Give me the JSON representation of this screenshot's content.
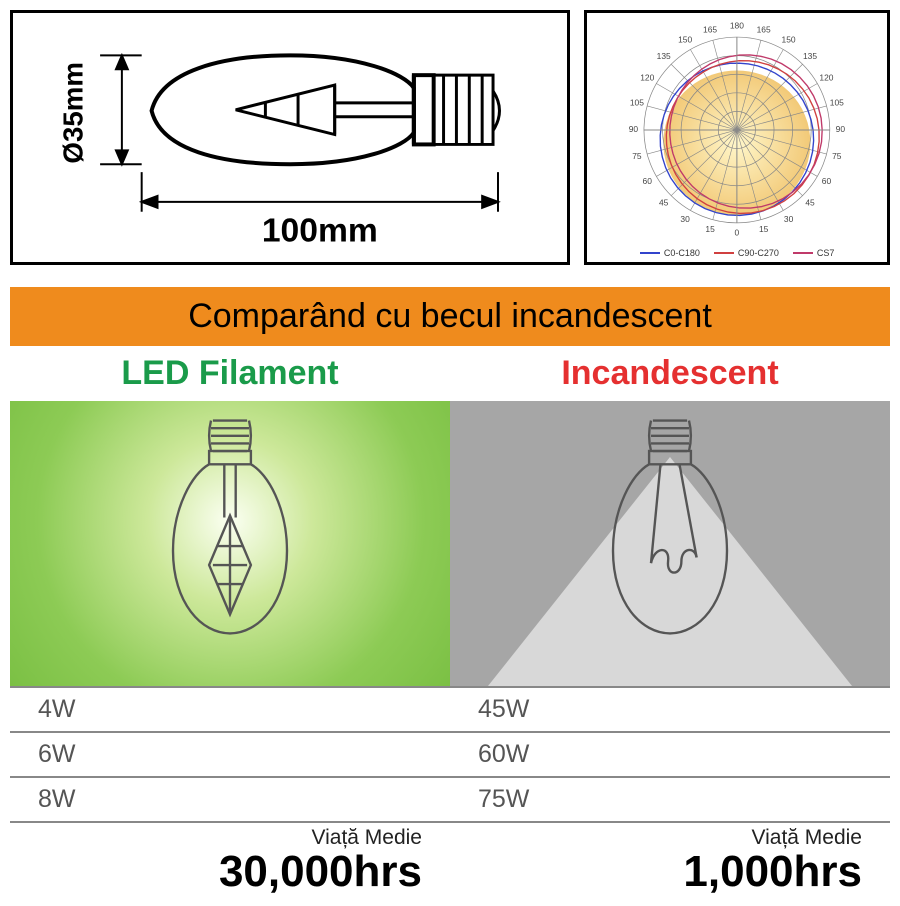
{
  "dimensions": {
    "width_label": "100mm",
    "height_label": "Ø35mm",
    "width_fontsize": 34,
    "height_fontsize": 28,
    "text_color": "#000000",
    "line_color": "#000000"
  },
  "polar": {
    "angle_labels": [
      "180",
      "165",
      "150",
      "135",
      "120",
      "105",
      "90",
      "75",
      "60",
      "45",
      "30",
      "15",
      "0",
      "15",
      "30",
      "45",
      "60",
      "75",
      "90",
      "105",
      "120",
      "135",
      "150",
      "165"
    ],
    "angle_label_deg": [
      270,
      285,
      300,
      315,
      330,
      345,
      0,
      15,
      30,
      45,
      60,
      75,
      90,
      105,
      120,
      135,
      150,
      165,
      180,
      195,
      210,
      225,
      240,
      255
    ],
    "rings": 5,
    "ring_color": "#888888",
    "label_fontsize": 8,
    "data_fill_gradient": [
      "#fff5c0",
      "#f0c060"
    ],
    "series": [
      {
        "name": "C0-C180",
        "color": "#3344cc"
      },
      {
        "name": "C90-C270",
        "color": "#d04040"
      },
      {
        "name": "CS7",
        "color": "#c03a6a"
      }
    ]
  },
  "compare": {
    "title": "Comparând cu becul incandescent",
    "title_bg": "#ef8b1d",
    "led": {
      "title": "LED Filament",
      "title_color": "#1a9b4a",
      "bg_colors": [
        "#fbfff2",
        "#cde89a",
        "#8dcb55",
        "#7bc044"
      ],
      "watts": [
        "4W",
        "6W",
        "8W"
      ],
      "life_label": "Viață Medie",
      "life_value": "30,000hrs"
    },
    "inc": {
      "title": "Incandescent",
      "title_color": "#e53030",
      "bg_color": "#a6a6a6",
      "beam_color": "#d8d8d8",
      "watts": [
        "45W",
        "60W",
        "75W"
      ],
      "life_label": "Viață Medie",
      "life_value": "1,000hrs"
    },
    "watt_fontsize": 25,
    "watt_color": "#555555",
    "life_label_fontsize": 21,
    "life_value_fontsize": 44,
    "grid_color": "#888888"
  },
  "bulb_drawing": {
    "stroke": "#555555",
    "stroke_width": 2,
    "glass_fill": "none"
  }
}
